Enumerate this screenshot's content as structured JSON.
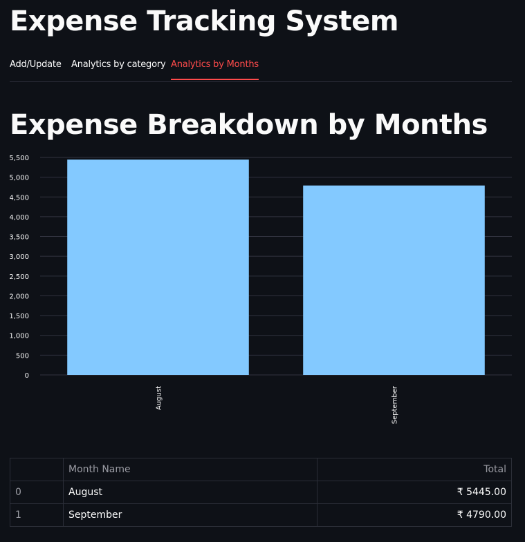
{
  "app": {
    "title": "Expense Tracking System"
  },
  "tabs": [
    {
      "label": "Add/Update",
      "active": false
    },
    {
      "label": "Analytics by category",
      "active": false
    },
    {
      "label": "Analytics by Months",
      "active": true
    }
  ],
  "section": {
    "title": "Expense Breakdown by Months"
  },
  "chart_data": {
    "type": "bar",
    "categories": [
      "August",
      "September"
    ],
    "values": [
      5445,
      4790
    ],
    "ylim": [
      0,
      5500
    ],
    "yticks": [
      0,
      500,
      1000,
      1500,
      2000,
      2500,
      3000,
      3500,
      4000,
      4500,
      5000,
      5500
    ],
    "ytick_labels": [
      "0",
      "500",
      "1,000",
      "1,500",
      "2,000",
      "2,500",
      "3,000",
      "3,500",
      "4,000",
      "4,500",
      "5,000",
      "5,500"
    ],
    "grid": true,
    "bar_color": "#83c9ff",
    "title": "",
    "xlabel": "",
    "ylabel": ""
  },
  "table": {
    "columns": [
      "",
      "Month Name",
      "Total"
    ],
    "rows": [
      {
        "index": "0",
        "month": "August",
        "total": "₹ 5445.00"
      },
      {
        "index": "1",
        "month": "September",
        "total": "₹ 4790.00"
      }
    ]
  },
  "colors": {
    "background": "#0e1117",
    "accent": "#ff4b4b",
    "text": "#fafafa",
    "grid": "#31333f"
  }
}
